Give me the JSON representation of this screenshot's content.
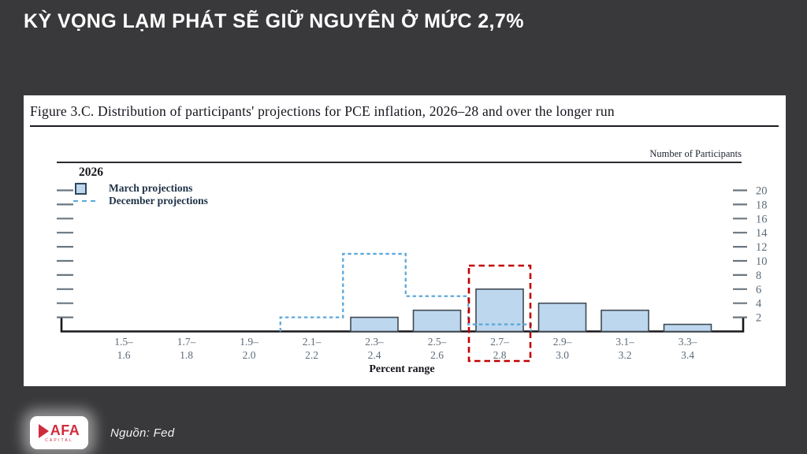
{
  "slide": {
    "title": "KỲ VỌNG LẠM PHÁT SẼ GIỮ NGUYÊN Ở MỨC 2,7%"
  },
  "figure": {
    "title": "Figure 3.C. Distribution of participants' projections for PCE inflation, 2026–28 and over the longer run",
    "panel_label": "2026",
    "right_axis_title": "Number of Participants",
    "x_axis_title": "Percent range"
  },
  "chart_data": {
    "type": "bar",
    "title": "Figure 3.C. Distribution of participants' projections for PCE inflation, 2026–28 and over the longer run",
    "panel": "2026",
    "xlabel": "Percent range",
    "ylabel": "Number of Participants",
    "categories": [
      "1.5–1.6",
      "1.7–1.8",
      "1.9–2.0",
      "2.1–2.2",
      "2.3–2.4",
      "2.5–2.6",
      "2.7–2.8",
      "2.9–3.0",
      "3.1–3.2",
      "3.3–3.4"
    ],
    "series": [
      {
        "name": "March projections",
        "style": "bar",
        "values": [
          0,
          0,
          0,
          0,
          2,
          3,
          6,
          4,
          3,
          1
        ]
      },
      {
        "name": "December projections",
        "style": "dashed-step",
        "values": [
          0,
          0,
          0,
          2,
          11,
          5,
          1,
          0,
          0,
          0
        ]
      }
    ],
    "y_ticks": [
      2,
      4,
      6,
      8,
      10,
      12,
      14,
      16,
      18,
      20
    ],
    "ylim": [
      0,
      21
    ],
    "grid": false,
    "legend_position": "top-left",
    "highlight": {
      "category": "2.7–2.8",
      "note": "red dashed box"
    }
  },
  "footer": {
    "logo_text": "AFA",
    "logo_subtext": "CAPITAL",
    "source": "Nguồn: Fed"
  },
  "colors": {
    "background": "#39393b",
    "bar_fill": "#bdd7ee",
    "bar_stroke": "#3f4a52",
    "december_dash": "#5ea9d9",
    "highlight_red": "#c00000",
    "axis_text": "#5d6b78",
    "axis_line": "#17171b",
    "tick_mark": "#6a7680",
    "logo_red": "#d02c3e"
  }
}
